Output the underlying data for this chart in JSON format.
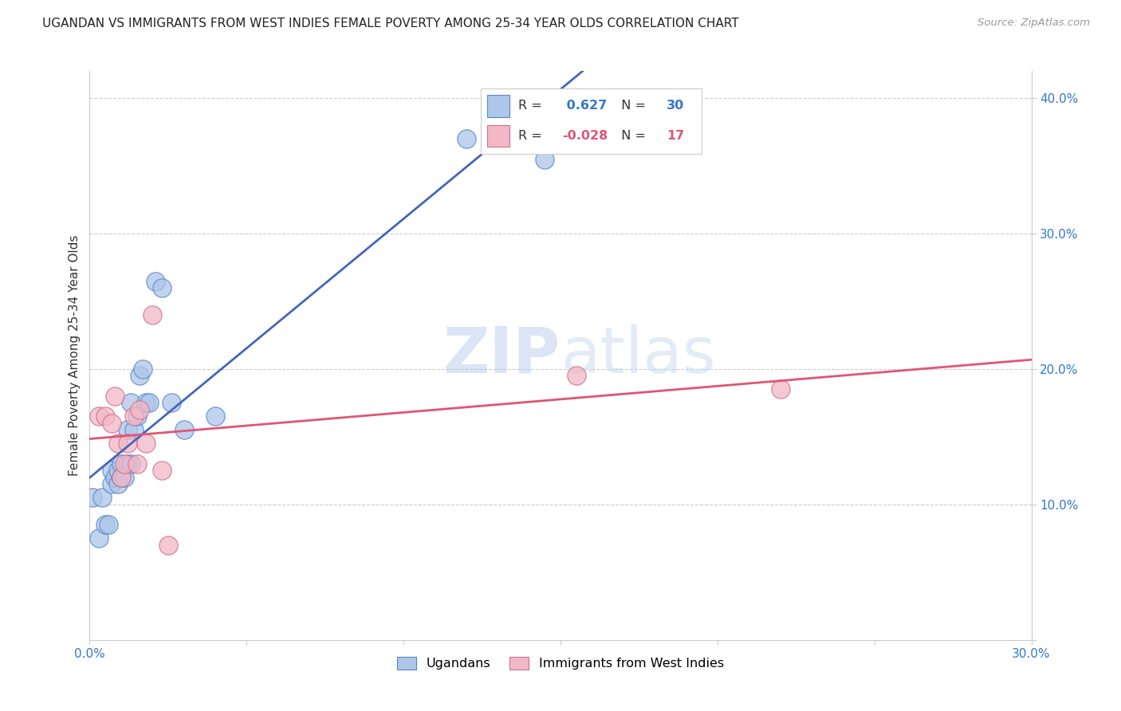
{
  "title": "UGANDAN VS IMMIGRANTS FROM WEST INDIES FEMALE POVERTY AMONG 25-34 YEAR OLDS CORRELATION CHART",
  "source": "Source: ZipAtlas.com",
  "ylabel": "Female Poverty Among 25-34 Year Olds",
  "xlim": [
    0.0,
    0.3
  ],
  "ylim": [
    0.0,
    0.42
  ],
  "xticks": [
    0.0,
    0.05,
    0.1,
    0.15,
    0.2,
    0.25,
    0.3
  ],
  "xtick_labels": [
    "0.0%",
    "",
    "",
    "",
    "",
    "",
    "30.0%"
  ],
  "yticks": [
    0.0,
    0.1,
    0.2,
    0.3,
    0.4
  ],
  "ytick_labels": [
    "",
    "10.0%",
    "20.0%",
    "30.0%",
    "40.0%"
  ],
  "ugandan_R": 0.627,
  "ugandan_N": 30,
  "westindies_R": -0.028,
  "westindies_N": 17,
  "ugandan_color": "#aec6e8",
  "ugandan_edge": "#5588cc",
  "westindies_color": "#f2b8c6",
  "westindies_edge": "#d07090",
  "line_ugandan": "#4466bb",
  "line_westindies": "#e05575",
  "watermark_zip": "ZIP",
  "watermark_atlas": "atlas",
  "ugandan_x": [
    0.0008,
    0.003,
    0.004,
    0.005,
    0.006,
    0.007,
    0.007,
    0.008,
    0.009,
    0.009,
    0.01,
    0.01,
    0.011,
    0.012,
    0.012,
    0.013,
    0.013,
    0.014,
    0.015,
    0.016,
    0.017,
    0.018,
    0.019,
    0.021,
    0.023,
    0.026,
    0.03,
    0.04,
    0.12,
    0.145
  ],
  "ugandan_y": [
    0.105,
    0.075,
    0.105,
    0.085,
    0.085,
    0.115,
    0.125,
    0.12,
    0.115,
    0.125,
    0.12,
    0.13,
    0.12,
    0.13,
    0.155,
    0.13,
    0.175,
    0.155,
    0.165,
    0.195,
    0.2,
    0.175,
    0.175,
    0.265,
    0.26,
    0.175,
    0.155,
    0.165,
    0.37,
    0.355
  ],
  "westindies_x": [
    0.003,
    0.005,
    0.007,
    0.008,
    0.009,
    0.01,
    0.011,
    0.012,
    0.014,
    0.015,
    0.016,
    0.018,
    0.02,
    0.023,
    0.025,
    0.155,
    0.22
  ],
  "westindies_y": [
    0.165,
    0.165,
    0.16,
    0.18,
    0.145,
    0.12,
    0.13,
    0.145,
    0.165,
    0.13,
    0.17,
    0.145,
    0.24,
    0.125,
    0.07,
    0.195,
    0.185
  ]
}
